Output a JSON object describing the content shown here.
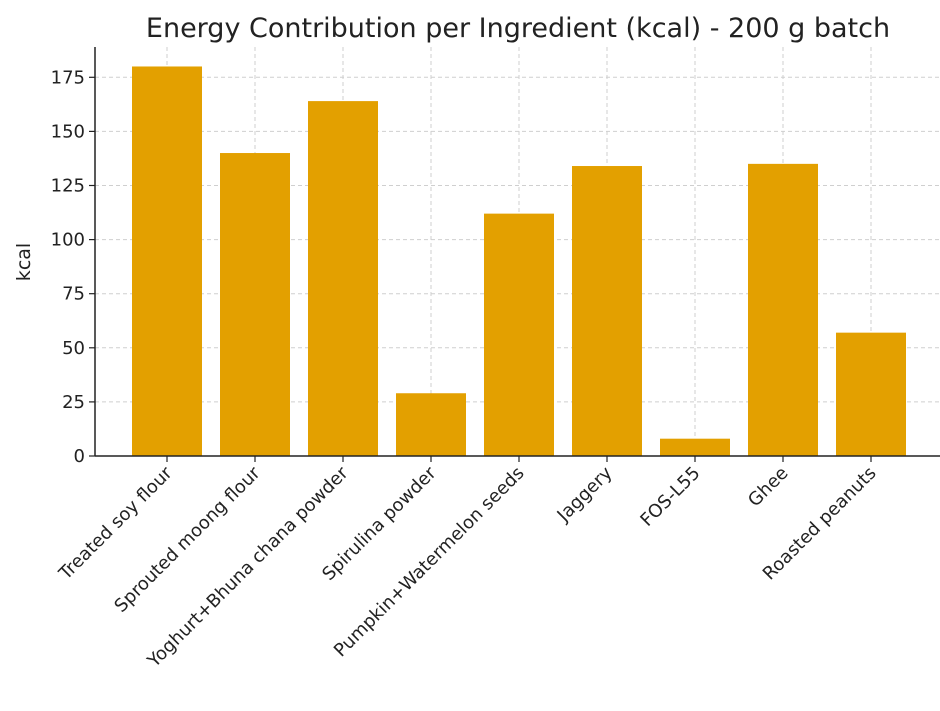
{
  "chart_data": {
    "type": "bar",
    "title": "Energy Contribution per Ingredient (kcal) - 200 g batch",
    "xlabel": "",
    "ylabel": "kcal",
    "categories": [
      "Treated soy flour",
      "Sprouted moong flour",
      "Yoghurt+Bhuna chana powder",
      "Spirulina powder",
      "Pumpkin+Watermelon seeds",
      "Jaggery",
      "FOS-L55",
      "Ghee",
      "Roasted peanuts"
    ],
    "values": [
      180,
      140,
      164,
      29,
      112,
      134,
      8,
      135,
      57
    ],
    "ylim": [
      0,
      189
    ],
    "yticks": [
      0,
      25,
      50,
      75,
      100,
      125,
      150,
      175
    ],
    "grid": true,
    "bar_color": "#E3A000"
  }
}
